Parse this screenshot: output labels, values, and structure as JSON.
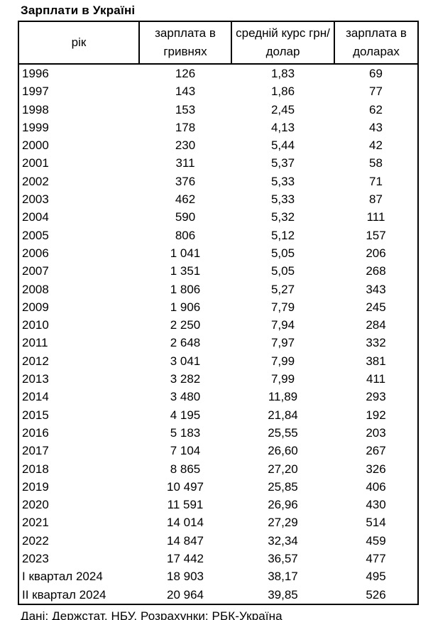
{
  "title": "Зарплати в Україні",
  "footer": "Дані: Держстат, НБУ. Розрахунки: РБК-Україна",
  "table": {
    "columns": [
      "рік",
      "зарплата в гривнях",
      "средній курс грн/долар",
      "зарплата в доларах"
    ],
    "rows": [
      {
        "year": "1996",
        "uah": "126",
        "rate": "1,83",
        "usd": "69"
      },
      {
        "year": "1997",
        "uah": "143",
        "rate": "1,86",
        "usd": "77"
      },
      {
        "year": "1998",
        "uah": "153",
        "rate": "2,45",
        "usd": "62"
      },
      {
        "year": "1999",
        "uah": "178",
        "rate": "4,13",
        "usd": "43"
      },
      {
        "year": "2000",
        "uah": "230",
        "rate": "5,44",
        "usd": "42"
      },
      {
        "year": "2001",
        "uah": "311",
        "rate": "5,37",
        "usd": "58"
      },
      {
        "year": "2002",
        "uah": "376",
        "rate": "5,33",
        "usd": "71"
      },
      {
        "year": "2003",
        "uah": "462",
        "rate": "5,33",
        "usd": "87"
      },
      {
        "year": "2004",
        "uah": "590",
        "rate": "5,32",
        "usd": "111"
      },
      {
        "year": "2005",
        "uah": "806",
        "rate": "5,12",
        "usd": "157"
      },
      {
        "year": "2006",
        "uah": "1 041",
        "rate": "5,05",
        "usd": "206"
      },
      {
        "year": "2007",
        "uah": "1 351",
        "rate": "5,05",
        "usd": "268"
      },
      {
        "year": "2008",
        "uah": "1 806",
        "rate": "5,27",
        "usd": "343"
      },
      {
        "year": "2009",
        "uah": "1 906",
        "rate": "7,79",
        "usd": "245"
      },
      {
        "year": "2010",
        "uah": "2 250",
        "rate": "7,94",
        "usd": "284"
      },
      {
        "year": "2011",
        "uah": "2 648",
        "rate": "7,97",
        "usd": "332"
      },
      {
        "year": "2012",
        "uah": "3 041",
        "rate": "7,99",
        "usd": "381"
      },
      {
        "year": "2013",
        "uah": "3 282",
        "rate": "7,99",
        "usd": "411"
      },
      {
        "year": "2014",
        "uah": "3 480",
        "rate": "11,89",
        "usd": "293"
      },
      {
        "year": "2015",
        "uah": "4 195",
        "rate": "21,84",
        "usd": "192"
      },
      {
        "year": "2016",
        "uah": "5 183",
        "rate": "25,55",
        "usd": "203"
      },
      {
        "year": "2017",
        "uah": "7 104",
        "rate": "26,60",
        "usd": "267"
      },
      {
        "year": "2018",
        "uah": "8 865",
        "rate": "27,20",
        "usd": "326"
      },
      {
        "year": "2019",
        "uah": "10 497",
        "rate": "25,85",
        "usd": "406"
      },
      {
        "year": "2020",
        "uah": "11 591",
        "rate": "26,96",
        "usd": "430"
      },
      {
        "year": "2021",
        "uah": "14 014",
        "rate": "27,29",
        "usd": "514"
      },
      {
        "year": "2022",
        "uah": "14 847",
        "rate": "32,34",
        "usd": "459"
      },
      {
        "year": "2023",
        "uah": "17 442",
        "rate": "36,57",
        "usd": "477"
      },
      {
        "year": "I квартал 2024",
        "uah": "18 903",
        "rate": "38,17",
        "usd": "495"
      },
      {
        "year": "II квартал 2024",
        "uah": "20 964",
        "rate": "39,85",
        "usd": "526"
      }
    ]
  },
  "chart_data": {
    "type": "table",
    "title": "Зарплати в Україні",
    "columns": [
      "рік",
      "зарплата в гривнях",
      "средній курс грн/долар",
      "зарплата в доларах"
    ],
    "rows": [
      [
        "1996",
        126,
        1.83,
        69
      ],
      [
        "1997",
        143,
        1.86,
        77
      ],
      [
        "1998",
        153,
        2.45,
        62
      ],
      [
        "1999",
        178,
        4.13,
        43
      ],
      [
        "2000",
        230,
        5.44,
        42
      ],
      [
        "2001",
        311,
        5.37,
        58
      ],
      [
        "2002",
        376,
        5.33,
        71
      ],
      [
        "2003",
        462,
        5.33,
        87
      ],
      [
        "2004",
        590,
        5.32,
        111
      ],
      [
        "2005",
        806,
        5.12,
        157
      ],
      [
        "2006",
        1041,
        5.05,
        206
      ],
      [
        "2007",
        1351,
        5.05,
        268
      ],
      [
        "2008",
        1806,
        5.27,
        343
      ],
      [
        "2009",
        1906,
        7.79,
        245
      ],
      [
        "2010",
        2250,
        7.94,
        284
      ],
      [
        "2011",
        2648,
        7.97,
        332
      ],
      [
        "2012",
        3041,
        7.99,
        381
      ],
      [
        "2013",
        3282,
        7.99,
        411
      ],
      [
        "2014",
        3480,
        11.89,
        293
      ],
      [
        "2015",
        4195,
        21.84,
        192
      ],
      [
        "2016",
        5183,
        25.55,
        203
      ],
      [
        "2017",
        7104,
        26.6,
        267
      ],
      [
        "2018",
        8865,
        27.2,
        326
      ],
      [
        "2019",
        10497,
        25.85,
        406
      ],
      [
        "2020",
        11591,
        26.96,
        430
      ],
      [
        "2021",
        14014,
        27.29,
        514
      ],
      [
        "2022",
        14847,
        32.34,
        459
      ],
      [
        "2023",
        17442,
        36.57,
        477
      ],
      [
        "I квартал 2024",
        18903,
        38.17,
        495
      ],
      [
        "II квартал 2024",
        20964,
        39.85,
        526
      ]
    ],
    "source": "Дані: Держстат, НБУ. Розрахунки: РБК-Україна"
  }
}
